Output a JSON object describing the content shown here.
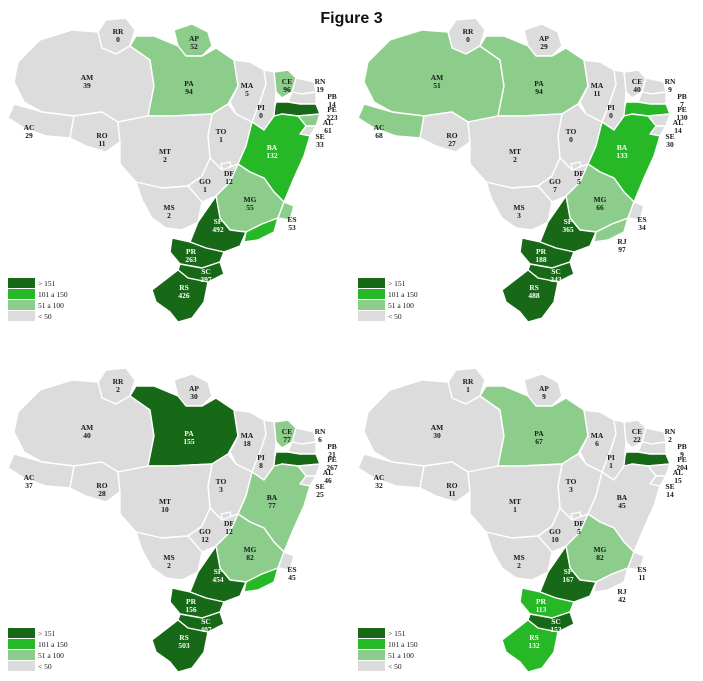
{
  "title": "Figure 3",
  "colors": {
    "gt151": "#176817",
    "c101_150": "#26b826",
    "c51_100": "#8ccd8c",
    "lt50": "#dcdcdc"
  },
  "legend": [
    {
      "key": "gt151",
      "label": "> 151"
    },
    {
      "key": "c101_150",
      "label": "101 a 150"
    },
    {
      "key": "c51_100",
      "label": "51 a 100"
    },
    {
      "key": "lt50",
      "label": "< 50"
    }
  ],
  "maps": [
    {
      "states": [
        {
          "abbr": "RR",
          "value": "0",
          "cls": "lt50"
        },
        {
          "abbr": "AP",
          "value": "52",
          "cls": "c51_100"
        },
        {
          "abbr": "AM",
          "value": "39",
          "cls": "lt50"
        },
        {
          "abbr": "PA",
          "value": "94",
          "cls": "c51_100"
        },
        {
          "abbr": "MA",
          "value": "5",
          "cls": "lt50"
        },
        {
          "abbr": "CE",
          "value": "96",
          "cls": "c51_100"
        },
        {
          "abbr": "RN",
          "value": "19",
          "cls": "lt50"
        },
        {
          "abbr": "PB",
          "value": "14",
          "cls": "lt50"
        },
        {
          "abbr": "PE",
          "value": "223",
          "cls": "gt151"
        },
        {
          "abbr": "AL",
          "value": "61",
          "cls": "c51_100"
        },
        {
          "abbr": "SE",
          "value": "33",
          "cls": "lt50"
        },
        {
          "abbr": "PI",
          "value": "0",
          "cls": "lt50"
        },
        {
          "abbr": "AC",
          "value": "29",
          "cls": "lt50"
        },
        {
          "abbr": "RO",
          "value": "11",
          "cls": "lt50"
        },
        {
          "abbr": "TO",
          "value": "1",
          "cls": "lt50"
        },
        {
          "abbr": "BA",
          "value": "132",
          "cls": "c101_150"
        },
        {
          "abbr": "MT",
          "value": "2",
          "cls": "lt50"
        },
        {
          "abbr": "DF",
          "value": "12",
          "cls": "lt50"
        },
        {
          "abbr": "GO",
          "value": "1",
          "cls": "lt50"
        },
        {
          "abbr": "MG",
          "value": "55",
          "cls": "c51_100"
        },
        {
          "abbr": "MS",
          "value": "2",
          "cls": "lt50"
        },
        {
          "abbr": "ES",
          "value": "53",
          "cls": "c51_100"
        },
        {
          "abbr": "SP",
          "value": "492",
          "cls": "gt151"
        },
        {
          "abbr": "RJ",
          "value": "122",
          "cls": "c101_150"
        },
        {
          "abbr": "PR",
          "value": "263",
          "cls": "gt151"
        },
        {
          "abbr": "SC",
          "value": "397",
          "cls": "gt151"
        },
        {
          "abbr": "RS",
          "value": "426",
          "cls": "gt151"
        }
      ]
    },
    {
      "states": [
        {
          "abbr": "RR",
          "value": "0",
          "cls": "lt50"
        },
        {
          "abbr": "AP",
          "value": "29",
          "cls": "lt50"
        },
        {
          "abbr": "AM",
          "value": "51",
          "cls": "c51_100"
        },
        {
          "abbr": "PA",
          "value": "94",
          "cls": "c51_100"
        },
        {
          "abbr": "MA",
          "value": "11",
          "cls": "lt50"
        },
        {
          "abbr": "CE",
          "value": "40",
          "cls": "lt50"
        },
        {
          "abbr": "RN",
          "value": "9",
          "cls": "lt50"
        },
        {
          "abbr": "PB",
          "value": "7",
          "cls": "lt50"
        },
        {
          "abbr": "PE",
          "value": "130",
          "cls": "c101_150"
        },
        {
          "abbr": "AL",
          "value": "14",
          "cls": "lt50"
        },
        {
          "abbr": "SE",
          "value": "30",
          "cls": "lt50"
        },
        {
          "abbr": "PI",
          "value": "0",
          "cls": "lt50"
        },
        {
          "abbr": "AC",
          "value": "68",
          "cls": "c51_100"
        },
        {
          "abbr": "RO",
          "value": "27",
          "cls": "lt50"
        },
        {
          "abbr": "TO",
          "value": "0",
          "cls": "lt50"
        },
        {
          "abbr": "BA",
          "value": "133",
          "cls": "c101_150"
        },
        {
          "abbr": "MT",
          "value": "2",
          "cls": "lt50"
        },
        {
          "abbr": "DF",
          "value": "5",
          "cls": "lt50"
        },
        {
          "abbr": "GO",
          "value": "7",
          "cls": "lt50"
        },
        {
          "abbr": "MG",
          "value": "66",
          "cls": "c51_100"
        },
        {
          "abbr": "MS",
          "value": "3",
          "cls": "lt50"
        },
        {
          "abbr": "ES",
          "value": "34",
          "cls": "lt50"
        },
        {
          "abbr": "SP",
          "value": "365",
          "cls": "gt151"
        },
        {
          "abbr": "RJ",
          "value": "97",
          "cls": "c51_100"
        },
        {
          "abbr": "PR",
          "value": "188",
          "cls": "gt151"
        },
        {
          "abbr": "SC",
          "value": "343",
          "cls": "gt151"
        },
        {
          "abbr": "RS",
          "value": "488",
          "cls": "gt151"
        }
      ]
    },
    {
      "states": [
        {
          "abbr": "RR",
          "value": "2",
          "cls": "lt50"
        },
        {
          "abbr": "AP",
          "value": "30",
          "cls": "lt50"
        },
        {
          "abbr": "AM",
          "value": "40",
          "cls": "lt50"
        },
        {
          "abbr": "PA",
          "value": "155",
          "cls": "gt151"
        },
        {
          "abbr": "MA",
          "value": "18",
          "cls": "lt50"
        },
        {
          "abbr": "CE",
          "value": "77",
          "cls": "c51_100"
        },
        {
          "abbr": "RN",
          "value": "6",
          "cls": "lt50"
        },
        {
          "abbr": "PB",
          "value": "21",
          "cls": "lt50"
        },
        {
          "abbr": "PE",
          "value": "267",
          "cls": "gt151"
        },
        {
          "abbr": "AL",
          "value": "46",
          "cls": "lt50"
        },
        {
          "abbr": "SE",
          "value": "25",
          "cls": "lt50"
        },
        {
          "abbr": "PI",
          "value": "8",
          "cls": "lt50"
        },
        {
          "abbr": "AC",
          "value": "37",
          "cls": "lt50"
        },
        {
          "abbr": "RO",
          "value": "28",
          "cls": "lt50"
        },
        {
          "abbr": "TO",
          "value": "3",
          "cls": "lt50"
        },
        {
          "abbr": "BA",
          "value": "77",
          "cls": "c51_100"
        },
        {
          "abbr": "MT",
          "value": "10",
          "cls": "lt50"
        },
        {
          "abbr": "DF",
          "value": "12",
          "cls": "lt50"
        },
        {
          "abbr": "GO",
          "value": "12",
          "cls": "lt50"
        },
        {
          "abbr": "MG",
          "value": "82",
          "cls": "c51_100"
        },
        {
          "abbr": "MS",
          "value": "2",
          "cls": "lt50"
        },
        {
          "abbr": "ES",
          "value": "45",
          "cls": "lt50"
        },
        {
          "abbr": "SP",
          "value": "454",
          "cls": "gt151"
        },
        {
          "abbr": "RJ",
          "value": "143",
          "cls": "c101_150"
        },
        {
          "abbr": "PR",
          "value": "156",
          "cls": "gt151"
        },
        {
          "abbr": "SC",
          "value": "407",
          "cls": "gt151"
        },
        {
          "abbr": "RS",
          "value": "503",
          "cls": "gt151"
        }
      ]
    },
    {
      "states": [
        {
          "abbr": "RR",
          "value": "1",
          "cls": "lt50"
        },
        {
          "abbr": "AP",
          "value": "9",
          "cls": "lt50"
        },
        {
          "abbr": "AM",
          "value": "30",
          "cls": "lt50"
        },
        {
          "abbr": "PA",
          "value": "67",
          "cls": "c51_100"
        },
        {
          "abbr": "MA",
          "value": "6",
          "cls": "lt50"
        },
        {
          "abbr": "CE",
          "value": "22",
          "cls": "lt50"
        },
        {
          "abbr": "RN",
          "value": "2",
          "cls": "lt50"
        },
        {
          "abbr": "PB",
          "value": "9",
          "cls": "lt50"
        },
        {
          "abbr": "PE",
          "value": "204",
          "cls": "gt151"
        },
        {
          "abbr": "AL",
          "value": "15",
          "cls": "lt50"
        },
        {
          "abbr": "SE",
          "value": "14",
          "cls": "lt50"
        },
        {
          "abbr": "PI",
          "value": "1",
          "cls": "lt50"
        },
        {
          "abbr": "AC",
          "value": "32",
          "cls": "lt50"
        },
        {
          "abbr": "RO",
          "value": "11",
          "cls": "lt50"
        },
        {
          "abbr": "TO",
          "value": "3",
          "cls": "lt50"
        },
        {
          "abbr": "BA",
          "value": "45",
          "cls": "lt50"
        },
        {
          "abbr": "MT",
          "value": "1",
          "cls": "lt50"
        },
        {
          "abbr": "DF",
          "value": "5",
          "cls": "lt50"
        },
        {
          "abbr": "GO",
          "value": "10",
          "cls": "lt50"
        },
        {
          "abbr": "MG",
          "value": "82",
          "cls": "c51_100"
        },
        {
          "abbr": "MS",
          "value": "2",
          "cls": "lt50"
        },
        {
          "abbr": "ES",
          "value": "11",
          "cls": "lt50"
        },
        {
          "abbr": "SP",
          "value": "167",
          "cls": "gt151"
        },
        {
          "abbr": "RJ",
          "value": "42",
          "cls": "lt50"
        },
        {
          "abbr": "PR",
          "value": "113",
          "cls": "c101_150"
        },
        {
          "abbr": "SC",
          "value": "153",
          "cls": "gt151"
        },
        {
          "abbr": "RS",
          "value": "132",
          "cls": "c101_150"
        }
      ]
    }
  ]
}
